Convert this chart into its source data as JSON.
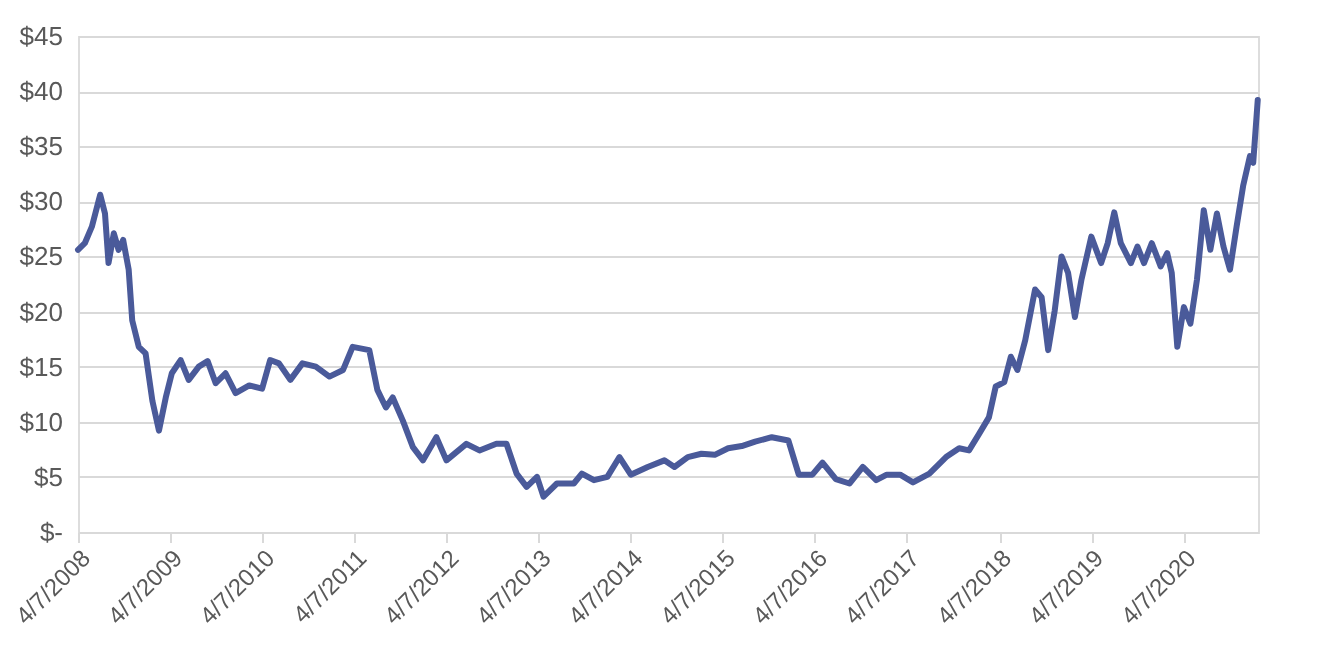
{
  "chart_data": {
    "type": "line",
    "grid": "y",
    "marker": "none",
    "line_style": "solid",
    "xlim": [
      "2008-04-07",
      "2021-01-28"
    ],
    "xticks": [
      {
        "value": "2008-04-07",
        "label": "4/7/2008"
      },
      {
        "value": "2009-04-07",
        "label": "4/7/2009"
      },
      {
        "value": "2010-04-07",
        "label": "4/7/2010"
      },
      {
        "value": "2011-04-07",
        "label": "4/7/2011"
      },
      {
        "value": "2012-04-07",
        "label": "4/7/2012"
      },
      {
        "value": "2013-04-07",
        "label": "4/7/2013"
      },
      {
        "value": "2014-04-07",
        "label": "4/7/2014"
      },
      {
        "value": "2015-04-07",
        "label": "4/7/2015"
      },
      {
        "value": "2016-04-07",
        "label": "4/7/2016"
      },
      {
        "value": "2017-04-07",
        "label": "4/7/2017"
      },
      {
        "value": "2018-04-07",
        "label": "4/7/2018"
      },
      {
        "value": "2019-04-07",
        "label": "4/7/2019"
      },
      {
        "value": "2020-04-07",
        "label": "4/7/2020"
      }
    ],
    "ylim": [
      0,
      45
    ],
    "yticks": [
      {
        "value": 0,
        "label": "$-"
      },
      {
        "value": 5,
        "label": "$5"
      },
      {
        "value": 10,
        "label": "$10"
      },
      {
        "value": 15,
        "label": "$15"
      },
      {
        "value": 20,
        "label": "$20"
      },
      {
        "value": 25,
        "label": "$25"
      },
      {
        "value": 30,
        "label": "$30"
      },
      {
        "value": 35,
        "label": "$35"
      },
      {
        "value": 40,
        "label": "$40"
      },
      {
        "value": 45,
        "label": "$45"
      }
    ],
    "x": [
      "2008-04-07",
      "2008-05-04",
      "2008-06-01",
      "2008-07-04",
      "2008-07-23",
      "2008-08-06",
      "2008-08-27",
      "2008-09-15",
      "2008-10-03",
      "2008-10-25",
      "2008-11-08",
      "2008-12-04",
      "2008-12-31",
      "2009-01-27",
      "2009-02-22",
      "2009-03-21",
      "2009-04-14",
      "2009-05-19",
      "2009-06-20",
      "2009-07-30",
      "2009-09-03",
      "2009-10-05",
      "2009-11-13",
      "2009-12-23",
      "2010-02-15",
      "2010-04-07",
      "2010-05-09",
      "2010-06-13",
      "2010-07-28",
      "2010-09-14",
      "2010-11-06",
      "2010-12-30",
      "2011-02-22",
      "2011-04-01",
      "2011-06-06",
      "2011-07-08",
      "2011-08-11",
      "2011-09-07",
      "2011-10-17",
      "2011-11-26",
      "2012-01-05",
      "2012-02-27",
      "2012-04-07",
      "2012-06-25",
      "2012-08-16",
      "2012-10-22",
      "2012-12-01",
      "2013-01-10",
      "2013-02-19",
      "2013-04-01",
      "2013-04-27",
      "2013-06-19",
      "2013-08-25",
      "2013-09-26",
      "2013-11-13",
      "2014-01-05",
      "2014-02-22",
      "2014-04-08",
      "2014-06-14",
      "2014-08-19",
      "2014-09-28",
      "2014-11-20",
      "2015-01-13",
      "2015-03-07",
      "2015-04-29",
      "2015-06-22",
      "2015-08-14",
      "2015-10-19",
      "2015-12-24",
      "2016-02-03",
      "2016-03-28",
      "2016-05-07",
      "2016-06-29",
      "2016-08-22",
      "2016-10-14",
      "2016-12-06",
      "2017-01-17",
      "2017-03-11",
      "2017-05-01",
      "2017-07-05",
      "2017-09-09",
      "2017-10-31",
      "2017-12-09",
      "2018-01-18",
      "2018-02-26",
      "2018-03-25",
      "2018-04-28",
      "2018-05-24",
      "2018-06-19",
      "2018-07-20",
      "2018-08-28",
      "2018-09-23",
      "2018-10-19",
      "2018-11-14",
      "2018-12-11",
      "2019-01-06",
      "2019-02-02",
      "2019-02-28",
      "2019-04-08",
      "2019-05-17",
      "2019-06-12",
      "2019-07-08",
      "2019-08-03",
      "2019-09-12",
      "2019-10-08",
      "2019-11-03",
      "2019-12-04",
      "2020-01-08",
      "2020-02-03",
      "2020-02-21",
      "2020-03-14",
      "2020-04-09",
      "2020-05-05",
      "2020-05-31",
      "2020-06-27",
      "2020-07-23",
      "2020-08-18",
      "2020-09-13",
      "2020-10-09",
      "2020-11-04",
      "2020-11-30",
      "2020-12-27",
      "2021-01-09",
      "2021-01-27"
    ],
    "series": [
      {
        "color": "#4a5a9a",
        "values": [
          25.6,
          26.2,
          27.7,
          30.6,
          28.9,
          24.4,
          27.1,
          25.6,
          26.5,
          23.8,
          19.2,
          16.8,
          16.2,
          11.9,
          9.2,
          12.2,
          14.4,
          15.6,
          13.8,
          15.0,
          15.5,
          13.5,
          14.4,
          12.6,
          13.3,
          13.0,
          15.6,
          15.3,
          13.8,
          15.3,
          15.0,
          14.1,
          14.7,
          16.8,
          16.5,
          12.9,
          11.3,
          12.2,
          10.1,
          7.7,
          6.5,
          8.6,
          6.5,
          8.0,
          7.4,
          8.0,
          8.0,
          5.3,
          4.1,
          5.0,
          3.2,
          4.4,
          4.4,
          5.3,
          4.7,
          5.0,
          6.8,
          5.2,
          5.9,
          6.5,
          5.9,
          6.8,
          7.1,
          7.0,
          7.6,
          7.8,
          8.2,
          8.6,
          8.3,
          5.2,
          5.2,
          6.3,
          4.8,
          4.4,
          5.9,
          4.7,
          5.2,
          5.2,
          4.5,
          5.3,
          6.8,
          7.6,
          7.4,
          8.9,
          10.4,
          13.2,
          13.6,
          15.9,
          14.7,
          17.4,
          22.0,
          21.3,
          16.5,
          20.1,
          25.0,
          23.5,
          19.5,
          22.9,
          26.8,
          24.4,
          26.2,
          29.0,
          26.2,
          24.4,
          25.9,
          24.4,
          26.2,
          24.1,
          25.3,
          23.5,
          16.8,
          20.4,
          18.9,
          22.9,
          29.2,
          25.6,
          28.9,
          25.9,
          23.8,
          27.7,
          31.4,
          34.1,
          33.5,
          39.2
        ]
      }
    ]
  }
}
